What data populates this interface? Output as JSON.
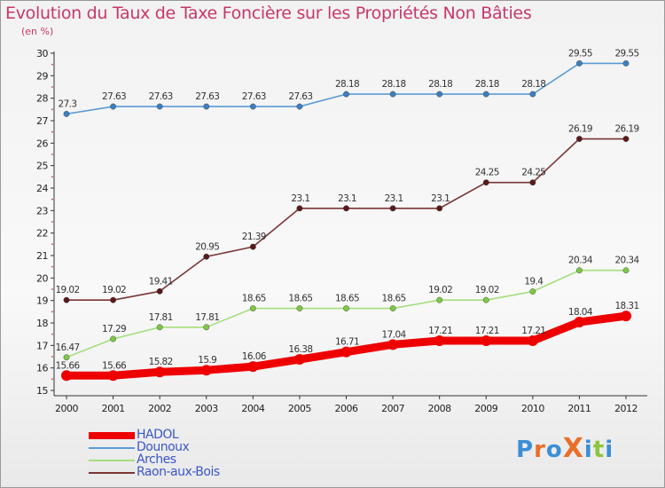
{
  "title": "Evolution du Taux de Taxe Foncière sur les Propriétés Non Bâties",
  "subtitle": "(en %)",
  "logo": {
    "text": "ProXiti",
    "colors": [
      "#3a8fd6",
      "#e8702a",
      "#3a8fd6",
      "#e8702a",
      "#3a8fd6",
      "#8cc63e",
      "#3a8fd6"
    ]
  },
  "chart_data": {
    "type": "line",
    "categories": [
      "2000",
      "2001",
      "2002",
      "2003",
      "2004",
      "2005",
      "2006",
      "2007",
      "2008",
      "2009",
      "2010",
      "2011",
      "2012"
    ],
    "ylim": [
      15,
      30
    ],
    "yticks": [
      15,
      16,
      17,
      18,
      19,
      20,
      21,
      22,
      23,
      24,
      25,
      26,
      27,
      28,
      29,
      30
    ],
    "grid": false,
    "legend_position": "bottom-left",
    "series": [
      {
        "name": "HADOL",
        "color": "#ee0000",
        "emphasis": true,
        "values": [
          15.66,
          15.66,
          15.82,
          15.9,
          16.06,
          16.38,
          16.71,
          17.04,
          17.21,
          17.21,
          17.21,
          18.04,
          18.31
        ],
        "labels": [
          "15.66",
          "15.66",
          "15.82",
          "15.9",
          "16.06",
          "16.38",
          "16.71",
          "17.04",
          "17.21",
          "17.21",
          "17.21",
          "18.04",
          "18.31"
        ]
      },
      {
        "name": "Dounoux",
        "color": "#5b9bd5",
        "point_color": "#3d7fc0",
        "values": [
          27.3,
          27.63,
          27.63,
          27.63,
          27.63,
          27.63,
          28.18,
          28.18,
          28.18,
          28.18,
          28.18,
          29.55,
          29.55
        ],
        "labels": [
          "27.3",
          "27.63",
          "27.63",
          "27.63",
          "27.63",
          "27.63",
          "28.18",
          "28.18",
          "28.18",
          "28.18",
          "28.18",
          "29.55",
          "29.55"
        ]
      },
      {
        "name": "Arches",
        "color": "#a6de7e",
        "point_color": "#7ec845",
        "values": [
          16.47,
          17.29,
          17.81,
          17.81,
          18.65,
          18.65,
          18.65,
          18.65,
          19.02,
          19.02,
          19.4,
          20.34,
          20.34
        ],
        "labels": [
          "16.47",
          "17.29",
          "17.81",
          "17.81",
          "18.65",
          "18.65",
          "18.65",
          "18.65",
          "19.02",
          "19.02",
          "19.4",
          "20.34",
          "20.34"
        ]
      },
      {
        "name": "Raon-aux-Bois",
        "color": "#7a3535",
        "point_color": "#5a1a1a",
        "values": [
          19.02,
          19.02,
          19.41,
          20.95,
          21.39,
          23.1,
          23.1,
          23.1,
          23.1,
          24.25,
          24.25,
          26.19,
          26.19
        ],
        "labels": [
          "19.02",
          "19.02",
          "19.41",
          "20.95",
          "21.39",
          "23.1",
          "23.1",
          "23.1",
          "23.1",
          "24.25",
          "24.25",
          "26.19",
          "26.19"
        ]
      }
    ]
  }
}
